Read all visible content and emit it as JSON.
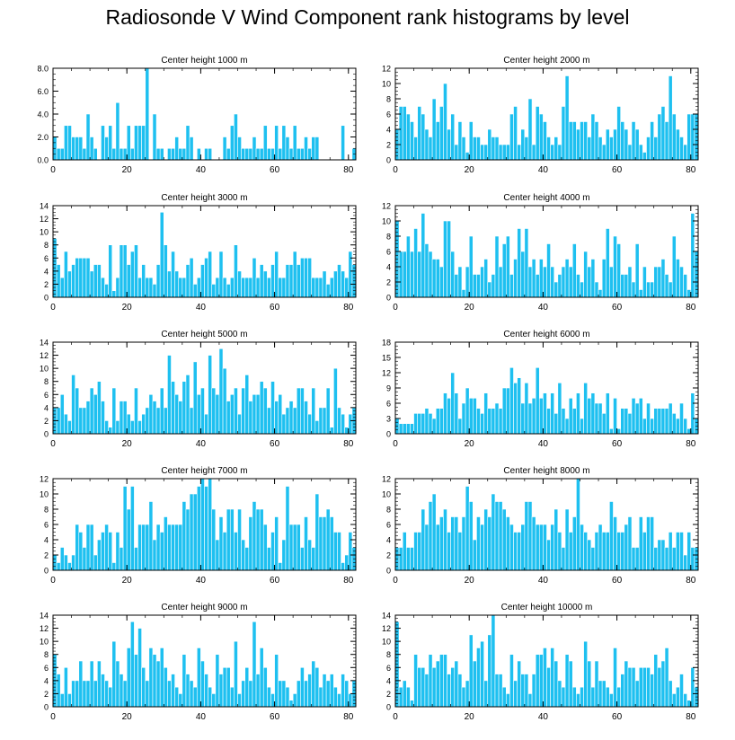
{
  "figure": {
    "title": "Radiosonde V Wind Component rank histograms by level",
    "bar_color": "#1ec0f0",
    "bar_edge_color": "#ffffff",
    "axis_color": "#000000"
  },
  "chart_data": [
    {
      "type": "bar",
      "title": "Center height 1000 m",
      "xlim": [
        0,
        82
      ],
      "ylim": [
        0,
        8
      ],
      "xticks": [
        0,
        20,
        40,
        60,
        80
      ],
      "yticks": [
        0,
        2,
        4,
        6,
        8
      ],
      "ytick_labels": [
        "0.0",
        "2.0",
        "4.0",
        "6.0",
        "8.0"
      ],
      "values": [
        2,
        1,
        1,
        3,
        3,
        2,
        2,
        2,
        1,
        4,
        2,
        1,
        0,
        3,
        2,
        3,
        1,
        5,
        1,
        1,
        3,
        1,
        3,
        3,
        3,
        8,
        0,
        4,
        1,
        1,
        0,
        1,
        1,
        2,
        1,
        1,
        3,
        2,
        0,
        1,
        0,
        1,
        1,
        0,
        0,
        0,
        2,
        1,
        3,
        4,
        2,
        1,
        1,
        1,
        2,
        1,
        1,
        3,
        1,
        1,
        3,
        1,
        3,
        2,
        1,
        3,
        1,
        1,
        2,
        1,
        2,
        2,
        0,
        0,
        0,
        0,
        0,
        0,
        3,
        0,
        0,
        1,
        1,
        1
      ]
    },
    {
      "type": "bar",
      "title": "Center height 2000 m",
      "xlim": [
        0,
        82
      ],
      "ylim": [
        0,
        12
      ],
      "xticks": [
        0,
        20,
        40,
        60,
        80
      ],
      "yticks": [
        0,
        2,
        4,
        6,
        8,
        10,
        12
      ],
      "ytick_labels": [
        "0",
        "2",
        "4",
        "6",
        "8",
        "10",
        "12"
      ],
      "values": [
        4,
        7,
        7,
        6,
        5,
        3,
        7,
        6,
        4,
        3,
        8,
        5,
        7,
        10,
        4,
        6,
        2,
        5,
        3,
        1,
        5,
        3,
        3,
        2,
        2,
        4,
        3,
        3,
        2,
        2,
        2,
        6,
        7,
        2,
        4,
        3,
        8,
        2,
        7,
        6,
        5,
        3,
        2,
        3,
        2,
        7,
        11,
        5,
        5,
        4,
        5,
        5,
        3,
        6,
        5,
        3,
        2,
        4,
        3,
        4,
        7,
        5,
        4,
        2,
        5,
        4,
        2,
        1,
        3,
        5,
        3,
        6,
        7,
        5,
        11,
        6,
        4,
        3,
        2,
        6,
        6,
        6,
        4,
        3
      ]
    },
    {
      "type": "bar",
      "title": "Center height 3000 m",
      "xlim": [
        0,
        82
      ],
      "ylim": [
        0,
        14
      ],
      "xticks": [
        0,
        20,
        40,
        60,
        80
      ],
      "yticks": [
        0,
        2,
        4,
        6,
        8,
        10,
        12,
        14
      ],
      "ytick_labels": [
        "0",
        "2",
        "4",
        "6",
        "8",
        "10",
        "12",
        "14"
      ],
      "values": [
        9,
        5,
        3,
        7,
        4,
        5,
        6,
        6,
        6,
        6,
        4,
        5,
        5,
        3,
        2,
        8,
        1,
        3,
        8,
        8,
        5,
        7,
        8,
        3,
        5,
        3,
        3,
        2,
        5,
        13,
        8,
        4,
        7,
        4,
        3,
        3,
        5,
        6,
        2,
        3,
        5,
        6,
        7,
        2,
        3,
        7,
        3,
        2,
        3,
        8,
        4,
        3,
        3,
        3,
        6,
        3,
        5,
        4,
        3,
        5,
        7,
        3,
        3,
        5,
        5,
        7,
        5,
        6,
        6,
        6,
        3,
        3,
        3,
        4,
        2,
        3,
        4,
        5,
        4,
        3,
        7,
        5,
        3,
        4
      ]
    },
    {
      "type": "bar",
      "title": "Center height 4000 m",
      "xlim": [
        0,
        82
      ],
      "ylim": [
        0,
        12
      ],
      "xticks": [
        0,
        20,
        40,
        60,
        80
      ],
      "yticks": [
        0,
        2,
        4,
        6,
        8,
        10,
        12
      ],
      "ytick_labels": [
        "0",
        "2",
        "4",
        "6",
        "8",
        "10",
        "12"
      ],
      "values": [
        10,
        6,
        6,
        8,
        6,
        9,
        6,
        11,
        7,
        6,
        5,
        5,
        4,
        10,
        10,
        6,
        3,
        4,
        1,
        4,
        8,
        3,
        3,
        4,
        5,
        2,
        3,
        8,
        4,
        7,
        8,
        3,
        5,
        9,
        6,
        9,
        4,
        5,
        3,
        5,
        4,
        7,
        4,
        2,
        3,
        4,
        5,
        4,
        7,
        3,
        2,
        6,
        4,
        5,
        2,
        1,
        5,
        9,
        4,
        8,
        7,
        3,
        3,
        4,
        2,
        7,
        1,
        4,
        2,
        2,
        4,
        4,
        5,
        3,
        2,
        8,
        5,
        4,
        3,
        1,
        11,
        6,
        9,
        5
      ]
    },
    {
      "type": "bar",
      "title": "Center height 5000 m",
      "xlim": [
        0,
        82
      ],
      "ylim": [
        0,
        14
      ],
      "xticks": [
        0,
        20,
        40,
        60,
        80
      ],
      "yticks": [
        0,
        2,
        4,
        6,
        8,
        10,
        12,
        14
      ],
      "ytick_labels": [
        "0",
        "2",
        "4",
        "6",
        "8",
        "10",
        "12",
        "14"
      ],
      "values": [
        4,
        4,
        6,
        3,
        2,
        9,
        7,
        4,
        4,
        5,
        7,
        6,
        8,
        5,
        2,
        1,
        7,
        2,
        5,
        5,
        3,
        2,
        7,
        2,
        3,
        4,
        6,
        5,
        4,
        7,
        4,
        12,
        8,
        6,
        5,
        8,
        9,
        4,
        11,
        6,
        7,
        3,
        12,
        7,
        6,
        13,
        10,
        5,
        6,
        7,
        3,
        7,
        9,
        5,
        6,
        6,
        8,
        7,
        4,
        8,
        5,
        6,
        3,
        4,
        5,
        4,
        7,
        7,
        5,
        3,
        7,
        2,
        4,
        4,
        7,
        1,
        10,
        4,
        3,
        1,
        3,
        4,
        1,
        2
      ]
    },
    {
      "type": "bar",
      "title": "Center height 6000 m",
      "xlim": [
        0,
        82
      ],
      "ylim": [
        0,
        18
      ],
      "xticks": [
        0,
        20,
        40,
        60,
        80
      ],
      "yticks": [
        0,
        3,
        6,
        9,
        12,
        15,
        18
      ],
      "ytick_labels": [
        "0",
        "3",
        "6",
        "9",
        "12",
        "15",
        "18"
      ],
      "values": [
        3,
        2,
        2,
        2,
        2,
        4,
        4,
        4,
        5,
        4,
        3,
        5,
        5,
        8,
        7,
        12,
        8,
        3,
        6,
        9,
        7,
        7,
        5,
        4,
        8,
        5,
        5,
        6,
        5,
        9,
        9,
        13,
        10,
        11,
        6,
        10,
        6,
        7,
        13,
        7,
        8,
        5,
        8,
        4,
        10,
        5,
        3,
        7,
        5,
        8,
        3,
        10,
        7,
        8,
        6,
        6,
        4,
        8,
        1,
        7,
        1,
        5,
        5,
        4,
        7,
        6,
        7,
        3,
        6,
        3,
        5,
        5,
        5,
        5,
        6,
        4,
        3,
        6,
        3,
        1,
        8,
        3,
        2,
        1
      ]
    },
    {
      "type": "bar",
      "title": "Center height 7000 m",
      "xlim": [
        0,
        82
      ],
      "ylim": [
        0,
        12
      ],
      "xticks": [
        0,
        20,
        40,
        60,
        80
      ],
      "yticks": [
        0,
        2,
        4,
        6,
        8,
        10,
        12
      ],
      "ytick_labels": [
        "0",
        "2",
        "4",
        "6",
        "8",
        "10",
        "12"
      ],
      "values": [
        2,
        1,
        3,
        2,
        1,
        2,
        6,
        5,
        3,
        6,
        6,
        2,
        4,
        5,
        6,
        5,
        1,
        5,
        3,
        11,
        8,
        11,
        3,
        6,
        6,
        6,
        9,
        4,
        6,
        5,
        7,
        6,
        6,
        6,
        6,
        9,
        8,
        10,
        10,
        11,
        12,
        11,
        12,
        8,
        4,
        7,
        5,
        8,
        8,
        5,
        8,
        4,
        3,
        7,
        9,
        8,
        8,
        6,
        3,
        5,
        7,
        1,
        4,
        11,
        6,
        6,
        6,
        3,
        7,
        4,
        3,
        10,
        7,
        7,
        8,
        7,
        5,
        5,
        1,
        2,
        5,
        3,
        4,
        7
      ]
    },
    {
      "type": "bar",
      "title": "Center height 8000 m",
      "xlim": [
        0,
        82
      ],
      "ylim": [
        0,
        12
      ],
      "xticks": [
        0,
        20,
        40,
        60,
        80
      ],
      "yticks": [
        0,
        2,
        4,
        6,
        8,
        10,
        12
      ],
      "ytick_labels": [
        "0",
        "2",
        "4",
        "6",
        "8",
        "10",
        "12"
      ],
      "values": [
        3,
        3,
        5,
        3,
        3,
        5,
        5,
        8,
        6,
        9,
        10,
        6,
        7,
        8,
        5,
        7,
        7,
        5,
        7,
        11,
        9,
        4,
        7,
        6,
        8,
        7,
        10,
        9,
        9,
        8,
        7,
        6,
        5,
        5,
        6,
        9,
        9,
        7,
        6,
        6,
        6,
        4,
        6,
        8,
        5,
        3,
        8,
        5,
        7,
        12,
        6,
        5,
        4,
        3,
        5,
        6,
        5,
        5,
        9,
        7,
        5,
        5,
        6,
        7,
        3,
        3,
        7,
        5,
        7,
        7,
        3,
        4,
        4,
        3,
        5,
        3,
        5,
        5,
        2,
        5,
        3,
        3,
        3,
        2
      ]
    },
    {
      "type": "bar",
      "title": "Center height 9000 m",
      "xlim": [
        0,
        82
      ],
      "ylim": [
        0,
        14
      ],
      "xticks": [
        0,
        20,
        40,
        60,
        80
      ],
      "yticks": [
        0,
        2,
        4,
        6,
        8,
        10,
        12,
        14
      ],
      "ytick_labels": [
        "0",
        "2",
        "4",
        "6",
        "8",
        "10",
        "12",
        "14"
      ],
      "values": [
        8,
        5,
        2,
        6,
        2,
        4,
        4,
        7,
        4,
        4,
        7,
        4,
        7,
        5,
        4,
        3,
        10,
        7,
        5,
        4,
        9,
        13,
        8,
        12,
        6,
        4,
        9,
        8,
        7,
        9,
        6,
        4,
        5,
        3,
        2,
        8,
        5,
        4,
        3,
        9,
        7,
        5,
        3,
        2,
        8,
        5,
        6,
        6,
        3,
        10,
        2,
        4,
        6,
        4,
        13,
        5,
        9,
        6,
        3,
        2,
        8,
        4,
        4,
        3,
        1,
        2,
        4,
        6,
        4,
        5,
        7,
        6,
        3,
        5,
        4,
        5,
        3,
        2,
        5,
        4,
        2,
        4,
        2,
        3
      ]
    },
    {
      "type": "bar",
      "title": "Center height 10000 m",
      "xlim": [
        0,
        82
      ],
      "ylim": [
        0,
        14
      ],
      "xticks": [
        0,
        20,
        40,
        60,
        80
      ],
      "yticks": [
        0,
        2,
        4,
        6,
        8,
        10,
        12,
        14
      ],
      "ytick_labels": [
        "0",
        "2",
        "4",
        "6",
        "8",
        "10",
        "12",
        "14"
      ],
      "values": [
        13,
        3,
        4,
        3,
        1,
        8,
        6,
        6,
        5,
        8,
        6,
        7,
        8,
        8,
        5,
        6,
        7,
        5,
        3,
        4,
        11,
        7,
        9,
        10,
        4,
        11,
        14,
        5,
        5,
        3,
        2,
        8,
        4,
        7,
        5,
        5,
        2,
        5,
        8,
        8,
        9,
        6,
        9,
        7,
        4,
        3,
        8,
        7,
        3,
        2,
        3,
        10,
        7,
        3,
        7,
        4,
        4,
        3,
        2,
        9,
        3,
        5,
        7,
        6,
        6,
        4,
        6,
        6,
        6,
        5,
        8,
        6,
        7,
        9,
        4,
        2,
        3,
        5,
        2,
        1,
        6,
        3,
        3,
        4
      ]
    }
  ]
}
